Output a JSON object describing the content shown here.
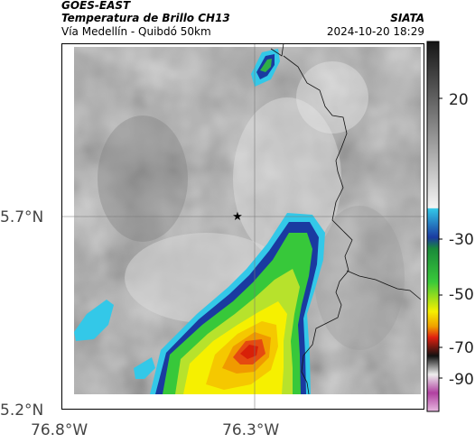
{
  "header": {
    "satellite": "GOES-EAST",
    "product": "Temperatura de Brillo CH13",
    "route": "Vía Medellín - Quibdó 50km",
    "agency": "SIATA",
    "datetime": "2024-10-20 18:29"
  },
  "map": {
    "lat_labels": [
      "5.7°N",
      "5.2°N"
    ],
    "lon_labels": [
      "76.8°W",
      "76.3°W"
    ],
    "marker": "star-marker"
  },
  "colorbar": {
    "ticks": [
      "20",
      "-30",
      "-50",
      "-70",
      "-90"
    ],
    "colors": {
      "warm_gray": "#a8a8a8",
      "cyan": "#33c8e8",
      "blue": "#1a3aa0",
      "green": "#39c93a",
      "yellow": "#f6f000",
      "orange": "#f0a000",
      "red": "#e02010",
      "magenta": "#b040a0"
    }
  }
}
